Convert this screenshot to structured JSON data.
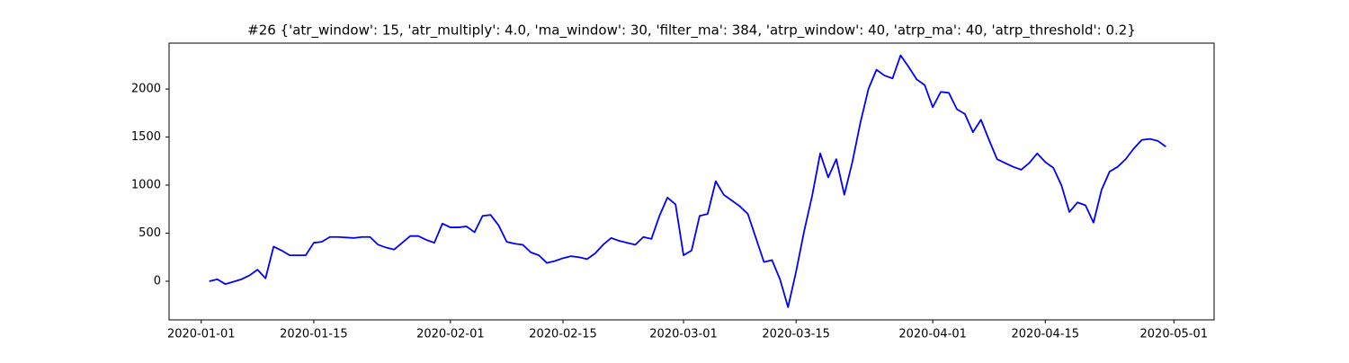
{
  "chart_data": {
    "type": "line",
    "title": "#26 {'atr_window': 15, 'atr_multiply': 4.0, 'ma_window': 30, 'filter_ma': 384, 'atrp_window': 40, 'atrp_ma': 40, 'atrp_threshold': 0.2}",
    "x": [
      "2020-01-02",
      "2020-01-03",
      "2020-01-04",
      "2020-01-06",
      "2020-01-07",
      "2020-01-08",
      "2020-01-09",
      "2020-01-10",
      "2020-01-11",
      "2020-01-12",
      "2020-01-14",
      "2020-01-15",
      "2020-01-16",
      "2020-01-17",
      "2020-01-18",
      "2020-01-19",
      "2020-01-20",
      "2020-01-21",
      "2020-01-22",
      "2020-01-23",
      "2020-01-24",
      "2020-01-25",
      "2020-01-26",
      "2020-01-27",
      "2020-01-28",
      "2020-01-29",
      "2020-01-30",
      "2020-01-31",
      "2020-02-01",
      "2020-02-02",
      "2020-02-03",
      "2020-02-04",
      "2020-02-05",
      "2020-02-06",
      "2020-02-07",
      "2020-02-08",
      "2020-02-09",
      "2020-02-10",
      "2020-02-11",
      "2020-02-12",
      "2020-02-13",
      "2020-02-14",
      "2020-02-15",
      "2020-02-16",
      "2020-02-17",
      "2020-02-18",
      "2020-02-19",
      "2020-02-20",
      "2020-02-21",
      "2020-02-22",
      "2020-02-23",
      "2020-02-24",
      "2020-02-25",
      "2020-02-26",
      "2020-02-27",
      "2020-02-28",
      "2020-02-29",
      "2020-03-01",
      "2020-03-02",
      "2020-03-03",
      "2020-03-04",
      "2020-03-05",
      "2020-03-06",
      "2020-03-07",
      "2020-03-08",
      "2020-03-09",
      "2020-03-10",
      "2020-03-11",
      "2020-03-12",
      "2020-03-13",
      "2020-03-14",
      "2020-03-15",
      "2020-03-16",
      "2020-03-17",
      "2020-03-18",
      "2020-03-19",
      "2020-03-20",
      "2020-03-21",
      "2020-03-22",
      "2020-03-23",
      "2020-03-24",
      "2020-03-25",
      "2020-03-26",
      "2020-03-27",
      "2020-03-28",
      "2020-03-29",
      "2020-03-30",
      "2020-03-31",
      "2020-04-01",
      "2020-04-02",
      "2020-04-03",
      "2020-04-04",
      "2020-04-05",
      "2020-04-06",
      "2020-04-07",
      "2020-04-08",
      "2020-04-09",
      "2020-04-10",
      "2020-04-11",
      "2020-04-12",
      "2020-04-13",
      "2020-04-14",
      "2020-04-15",
      "2020-04-16",
      "2020-04-17",
      "2020-04-18",
      "2020-04-19",
      "2020-04-20",
      "2020-04-21",
      "2020-04-22",
      "2020-04-23",
      "2020-04-24",
      "2020-04-25",
      "2020-04-26",
      "2020-04-27",
      "2020-04-28",
      "2020-04-29",
      "2020-04-30"
    ],
    "series": [
      {
        "color": "#0000ff",
        "values": [
          0,
          20,
          -30,
          20,
          60,
          120,
          30,
          360,
          320,
          270,
          270,
          400,
          410,
          460,
          460,
          455,
          450,
          460,
          460,
          380,
          350,
          330,
          400,
          470,
          470,
          430,
          400,
          600,
          560,
          560,
          570,
          510,
          680,
          690,
          580,
          410,
          390,
          380,
          300,
          270,
          190,
          210,
          240,
          260,
          250,
          230,
          290,
          380,
          450,
          420,
          400,
          380,
          460,
          440,
          680,
          870,
          800,
          270,
          320,
          680,
          700,
          1040,
          900,
          840,
          780,
          700,
          450,
          200,
          220,
          20,
          -270,
          100,
          520,
          890,
          1330,
          1080,
          1270,
          900,
          1240,
          1650,
          2000,
          2200,
          2140,
          2110,
          2350,
          2230,
          2100,
          2040,
          1810,
          1970,
          1960,
          1790,
          1740,
          1550,
          1680,
          1470,
          1270,
          1230,
          1190,
          1160,
          1230,
          1330,
          1240,
          1180,
          1000,
          720,
          820,
          790,
          610,
          950,
          1140,
          1190,
          1270,
          1380,
          1470,
          1480,
          1460,
          1400
        ]
      }
    ],
    "xlim": [
      "2019-12-28",
      "2020-05-06"
    ],
    "xticks": [
      "2020-01-01",
      "2020-01-15",
      "2020-02-01",
      "2020-02-15",
      "2020-03-01",
      "2020-03-15",
      "2020-04-01",
      "2020-04-15",
      "2020-05-01"
    ],
    "ylim": [
      -402,
      2477
    ],
    "yticks": [
      0,
      500,
      1000,
      1500,
      2000
    ]
  }
}
